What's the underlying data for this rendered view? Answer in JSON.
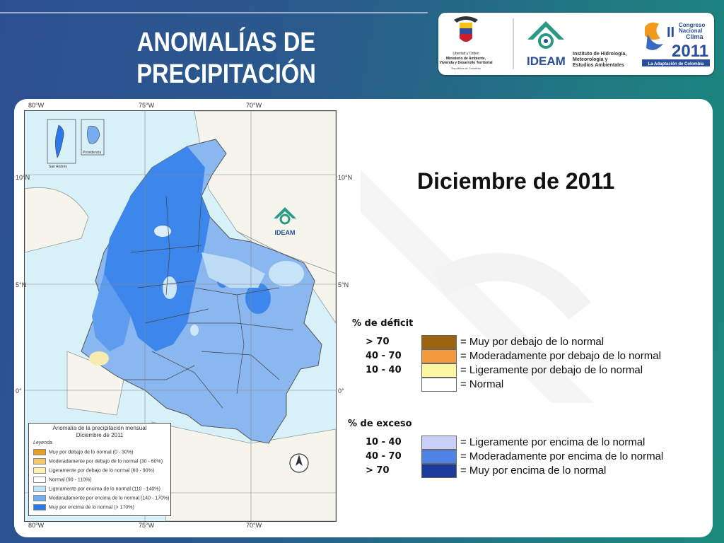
{
  "slide": {
    "title_line1": "ANOMALÍAS DE",
    "title_line2": "PRECIPITACIÓN",
    "heading": "Diciembre de 2011"
  },
  "logos": {
    "ministry_line1": "Libertad y Orden",
    "ministry_line2": "Ministerio de Ambiente,",
    "ministry_line3": "Vivienda y Desarrollo Territorial",
    "ministry_line4": "República de Colombia",
    "ideam_acronym": "IDEAM",
    "ideam_name1": "Instituto de Hidrología,",
    "ideam_name2": "Meteorología y",
    "ideam_name3": "Estudios Ambientales",
    "congress_line1": "Congreso",
    "congress_line2": "Nacional",
    "congress_line3": "Clima",
    "congress_year": "2011",
    "congress_tagline": "La Adaptación de Colombia"
  },
  "map": {
    "coords": {
      "top": [
        "80°W",
        "75°W",
        "70°W"
      ],
      "bottom": [
        "80°W",
        "75°W",
        "70°W"
      ],
      "left": [
        "10°N",
        "5°N",
        "0°"
      ],
      "right": [
        "10°N",
        "5°N",
        "0°"
      ]
    },
    "insets": [
      "San Andrés",
      "Providencia"
    ],
    "watermark": "IDEAM",
    "legend": {
      "title1": "Anomalía de la precipitación mensual",
      "title2": "Diciembre de 2011",
      "header": "Leyenda",
      "items": [
        {
          "label": "Muy por debajo de lo normal (0 - 30%)",
          "color": "#e7a020"
        },
        {
          "label": "Moderadamente por debajo de lo normal (30 - 60%)",
          "color": "#f4c86a"
        },
        {
          "label": "Ligeramente por debajo de lo normal (60 - 90%)",
          "color": "#fbf0b0"
        },
        {
          "label": "Normal (90 - 110%)",
          "color": "#ffffff"
        },
        {
          "label": "Ligeramente por encima de lo normal (110 - 140%)",
          "color": "#bfe4f8"
        },
        {
          "label": "Moderadamente por encima de lo normal (140 - 170%)",
          "color": "#76adf0"
        },
        {
          "label": "Muy por encima de lo normal (> 170%)",
          "color": "#2a78ea"
        }
      ]
    }
  },
  "deficit": {
    "header": "% de déficit",
    "rows": [
      {
        "range": "> 70",
        "label": "= Muy por debajo de lo normal",
        "color": "#9c6410"
      },
      {
        "range": "40 -  70",
        "label": "= Moderadamente por debajo de lo normal",
        "color": "#f59a3c"
      },
      {
        "range": "10 -  40",
        "label": "= Ligeramente por debajo de lo normal",
        "color": "#fbf7a0"
      },
      {
        "range": "",
        "label": "= Normal",
        "color": "#ffffff"
      }
    ]
  },
  "excess": {
    "header": "% de exceso",
    "rows": [
      {
        "range": "10 -  40",
        "label": "= Ligeramente por encima de lo normal",
        "color": "#c8cff8"
      },
      {
        "range": "40 -  70",
        "label": "= Moderadamente por encima de lo normal",
        "color": "#4f83e8"
      },
      {
        "range": "> 70",
        "label": "= Muy por encima de lo normal",
        "color": "#1c3a9c"
      }
    ]
  }
}
